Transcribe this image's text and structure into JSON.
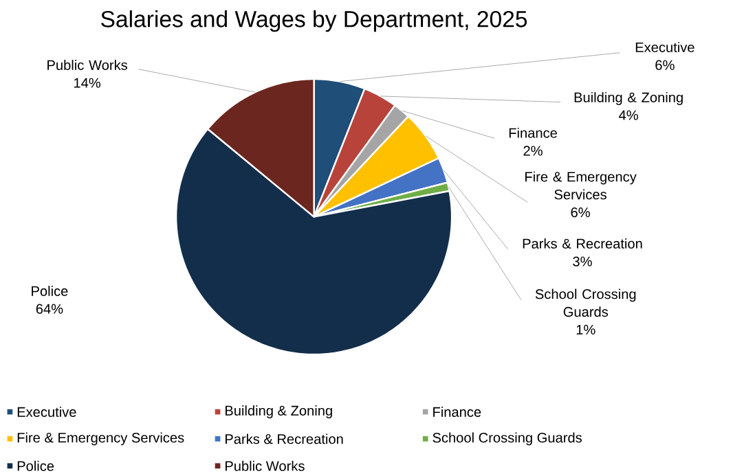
{
  "chart_data": {
    "type": "pie",
    "title": "Salaries and Wages by Department, 2025",
    "categories": [
      "Executive",
      "Building & Zoning",
      "Finance",
      "Fire & Emergency Services",
      "Parks & Recreation",
      "School Crossing Guards",
      "Police",
      "Public Works"
    ],
    "values": [
      6,
      4,
      2,
      6,
      3,
      1,
      64,
      14
    ],
    "value_labels": [
      "6%",
      "4%",
      "2%",
      "6%",
      "3%",
      "1%",
      "64%",
      "14%"
    ],
    "colors": [
      "#1f4e79",
      "#b8433a",
      "#a5a5a5",
      "#ffc000",
      "#4472c4",
      "#70ad47",
      "#132e4a",
      "#6b2620"
    ],
    "legend": "bottom"
  }
}
